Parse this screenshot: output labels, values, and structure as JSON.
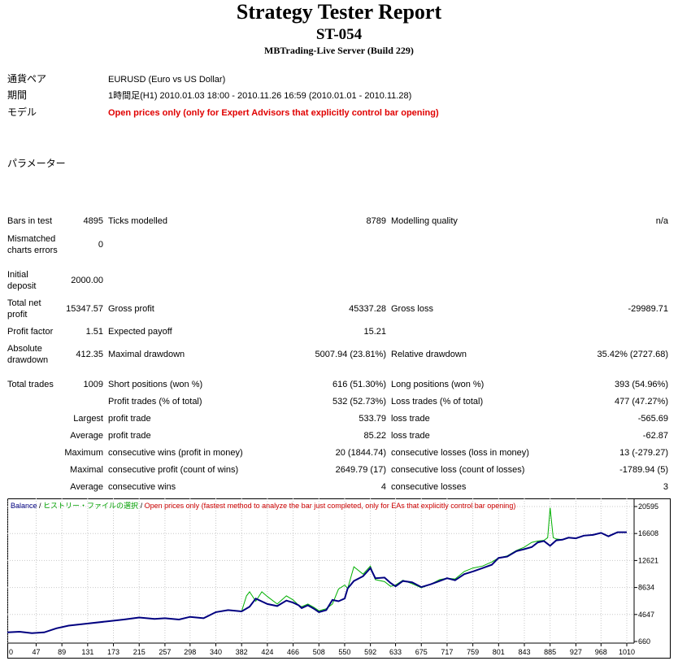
{
  "header": {
    "title": "Strategy Tester Report",
    "subtitle": "ST-054",
    "server": "MBTrading-Live Server (Build 229)"
  },
  "info": {
    "pair_label": "通貨ペア",
    "pair_value": "EURUSD (Euro vs US Dollar)",
    "period_label": "期間",
    "period_value": "1時間足(H1) 2010.01.03 18:00 - 2010.11.26 16:59 (2010.01.01 - 2010.11.28)",
    "model_label": "モデル",
    "model_value": "Open prices only (only for Expert Advisors that explicitly control bar opening)",
    "params_label": "パラメーター"
  },
  "stats": {
    "bars_label": "Bars in test",
    "bars_value": "4895",
    "ticks_label": "Ticks modelled",
    "ticks_value": "8789",
    "quality_label": "Modelling quality",
    "quality_value": "n/a",
    "mismatch_label_1": "Mismatched",
    "mismatch_label_2": "charts errors",
    "mismatch_value": "0",
    "deposit_label_1": "Initial",
    "deposit_label_2": "deposit",
    "deposit_value": "2000.00",
    "netprofit_label_1": "Total net",
    "netprofit_label_2": "profit",
    "netprofit_value": "15347.57",
    "grossprofit_label": "Gross profit",
    "grossprofit_value": "45337.28",
    "grossloss_label": "Gross loss",
    "grossloss_value": "-29989.71",
    "pf_label": "Profit factor",
    "pf_value": "1.51",
    "payoff_label": "Expected payoff",
    "payoff_value": "15.21",
    "absdd_label_1": "Absolute",
    "absdd_label_2": "drawdown",
    "absdd_value": "412.35",
    "maxdd_label": "Maximal drawdown",
    "maxdd_value": "5007.94 (23.81%)",
    "reldd_label": "Relative drawdown",
    "reldd_value": "35.42% (2727.68)",
    "trades_label": "Total trades",
    "trades_value": "1009",
    "short_label": "Short positions (won %)",
    "short_value": "616 (51.30%)",
    "long_label": "Long positions (won %)",
    "long_value": "393 (54.96%)",
    "ptrades_label": "Profit trades (% of total)",
    "ptrades_value": "532 (52.73%)",
    "ltrades_label": "Loss trades (% of total)",
    "ltrades_value": "477 (47.27%)",
    "largest_label": "Largest",
    "largest_profit_label": "profit trade",
    "largest_profit_value": "533.79",
    "largest_loss_label": "loss trade",
    "largest_loss_value": "-565.69",
    "average_label": "Average",
    "avg_profit_label": "profit trade",
    "avg_profit_value": "85.22",
    "avg_loss_label": "loss trade",
    "avg_loss_value": "-62.87",
    "maximum_label": "Maximum",
    "max_cw_label": "consecutive wins (profit in money)",
    "max_cw_value": "20 (1844.74)",
    "max_cl_label": "consecutive losses (loss in money)",
    "max_cl_value": "13 (-279.27)",
    "maximal_label": "Maximal",
    "mxl_cp_label": "consecutive profit (count of wins)",
    "mxl_cp_value": "2649.79 (17)",
    "mxl_cl_label": "consecutive loss (count of losses)",
    "mxl_cl_value": "-1789.94 (5)",
    "average2_label": "Average",
    "avg_cw_label": "consecutive wins",
    "avg_cw_value": "4",
    "avg_cl_label": "consecutive losses",
    "avg_cl_value": "3"
  },
  "chart_data": {
    "type": "line",
    "legend_balance": "Balance",
    "legend_sep1": " / ",
    "legend_history": "ヒストリー・ファイルの選択",
    "legend_sep2": " / ",
    "legend_model": "Open prices only (fastest method to analyze the bar just completed, only for EAs that explicitly control bar opening)",
    "colors": {
      "balance": "#000080",
      "equity": "#00b000",
      "model_text": "#cc0000",
      "history_text": "#00a000"
    },
    "x_ticks": [
      "0",
      "47",
      "89",
      "131",
      "173",
      "215",
      "257",
      "298",
      "340",
      "382",
      "424",
      "466",
      "508",
      "550",
      "592",
      "633",
      "675",
      "717",
      "759",
      "801",
      "843",
      "885",
      "927",
      "968",
      "1010"
    ],
    "y_ticks": [
      "20595",
      "16608",
      "12621",
      "8634",
      "4647",
      "660"
    ],
    "xlim": [
      0,
      1010
    ],
    "ylim": [
      660,
      20595
    ],
    "series": [
      {
        "name": "Balance",
        "x": [
          0,
          20,
          40,
          60,
          80,
          100,
          130,
          160,
          190,
          215,
          240,
          257,
          280,
          298,
          320,
          340,
          360,
          382,
          395,
          405,
          424,
          440,
          455,
          466,
          475,
          480,
          490,
          500,
          508,
          520,
          530,
          540,
          550,
          555,
          565,
          580,
          592,
          600,
          615,
          625,
          633,
          645,
          660,
          675,
          690,
          705,
          717,
          730,
          745,
          759,
          775,
          790,
          801,
          815,
          830,
          843,
          855,
          865,
          875,
          885,
          895,
          905,
          915,
          927,
          940,
          955,
          968,
          980,
          995,
          1010
        ],
        "y": [
          2000,
          2100,
          1900,
          2000,
          2600,
          3000,
          3300,
          3600,
          3900,
          4200,
          4000,
          4100,
          3900,
          4300,
          4100,
          5000,
          5300,
          5100,
          5800,
          7000,
          6200,
          5900,
          6700,
          6400,
          6000,
          5600,
          6000,
          5500,
          5000,
          5300,
          6800,
          6600,
          7000,
          8500,
          9600,
          10300,
          11500,
          10000,
          10100,
          9300,
          8800,
          9600,
          9400,
          8700,
          9100,
          9600,
          10000,
          9700,
          10600,
          11000,
          11500,
          12000,
          13000,
          13200,
          14000,
          14300,
          14600,
          15300,
          15500,
          14800,
          15600,
          15700,
          16000,
          15900,
          16300,
          16400,
          16700,
          16200,
          16800,
          16800
        ]
      },
      {
        "name": "Equity",
        "x": [
          0,
          20,
          40,
          60,
          80,
          100,
          130,
          160,
          190,
          215,
          240,
          257,
          280,
          298,
          320,
          340,
          360,
          382,
          390,
          395,
          405,
          415,
          424,
          440,
          455,
          466,
          475,
          480,
          490,
          500,
          508,
          520,
          530,
          540,
          550,
          555,
          565,
          580,
          592,
          600,
          615,
          625,
          633,
          645,
          660,
          675,
          690,
          705,
          717,
          730,
          745,
          759,
          775,
          790,
          801,
          815,
          830,
          843,
          855,
          865,
          875,
          881,
          885,
          890,
          895,
          905,
          915,
          927,
          940,
          955,
          968,
          980,
          995,
          1010
        ],
        "y": [
          2000,
          2100,
          1900,
          2000,
          2600,
          3000,
          3300,
          3600,
          3900,
          4200,
          4000,
          4100,
          3900,
          4300,
          4100,
          5000,
          5300,
          5100,
          7400,
          8000,
          6600,
          8000,
          7300,
          6200,
          7400,
          6800,
          6000,
          5800,
          6200,
          5700,
          5200,
          5500,
          6200,
          8400,
          9000,
          8500,
          11700,
          10600,
          11800,
          9800,
          9500,
          8800,
          9000,
          9700,
          9200,
          8600,
          9100,
          9800,
          10000,
          9900,
          11000,
          11500,
          11800,
          12400,
          13000,
          13300,
          14100,
          14600,
          15300,
          15500,
          15600,
          16000,
          20400,
          16000,
          15800,
          15700,
          16000,
          15900,
          16300,
          16400,
          16700,
          16200,
          16800,
          16800
        ]
      }
    ]
  }
}
